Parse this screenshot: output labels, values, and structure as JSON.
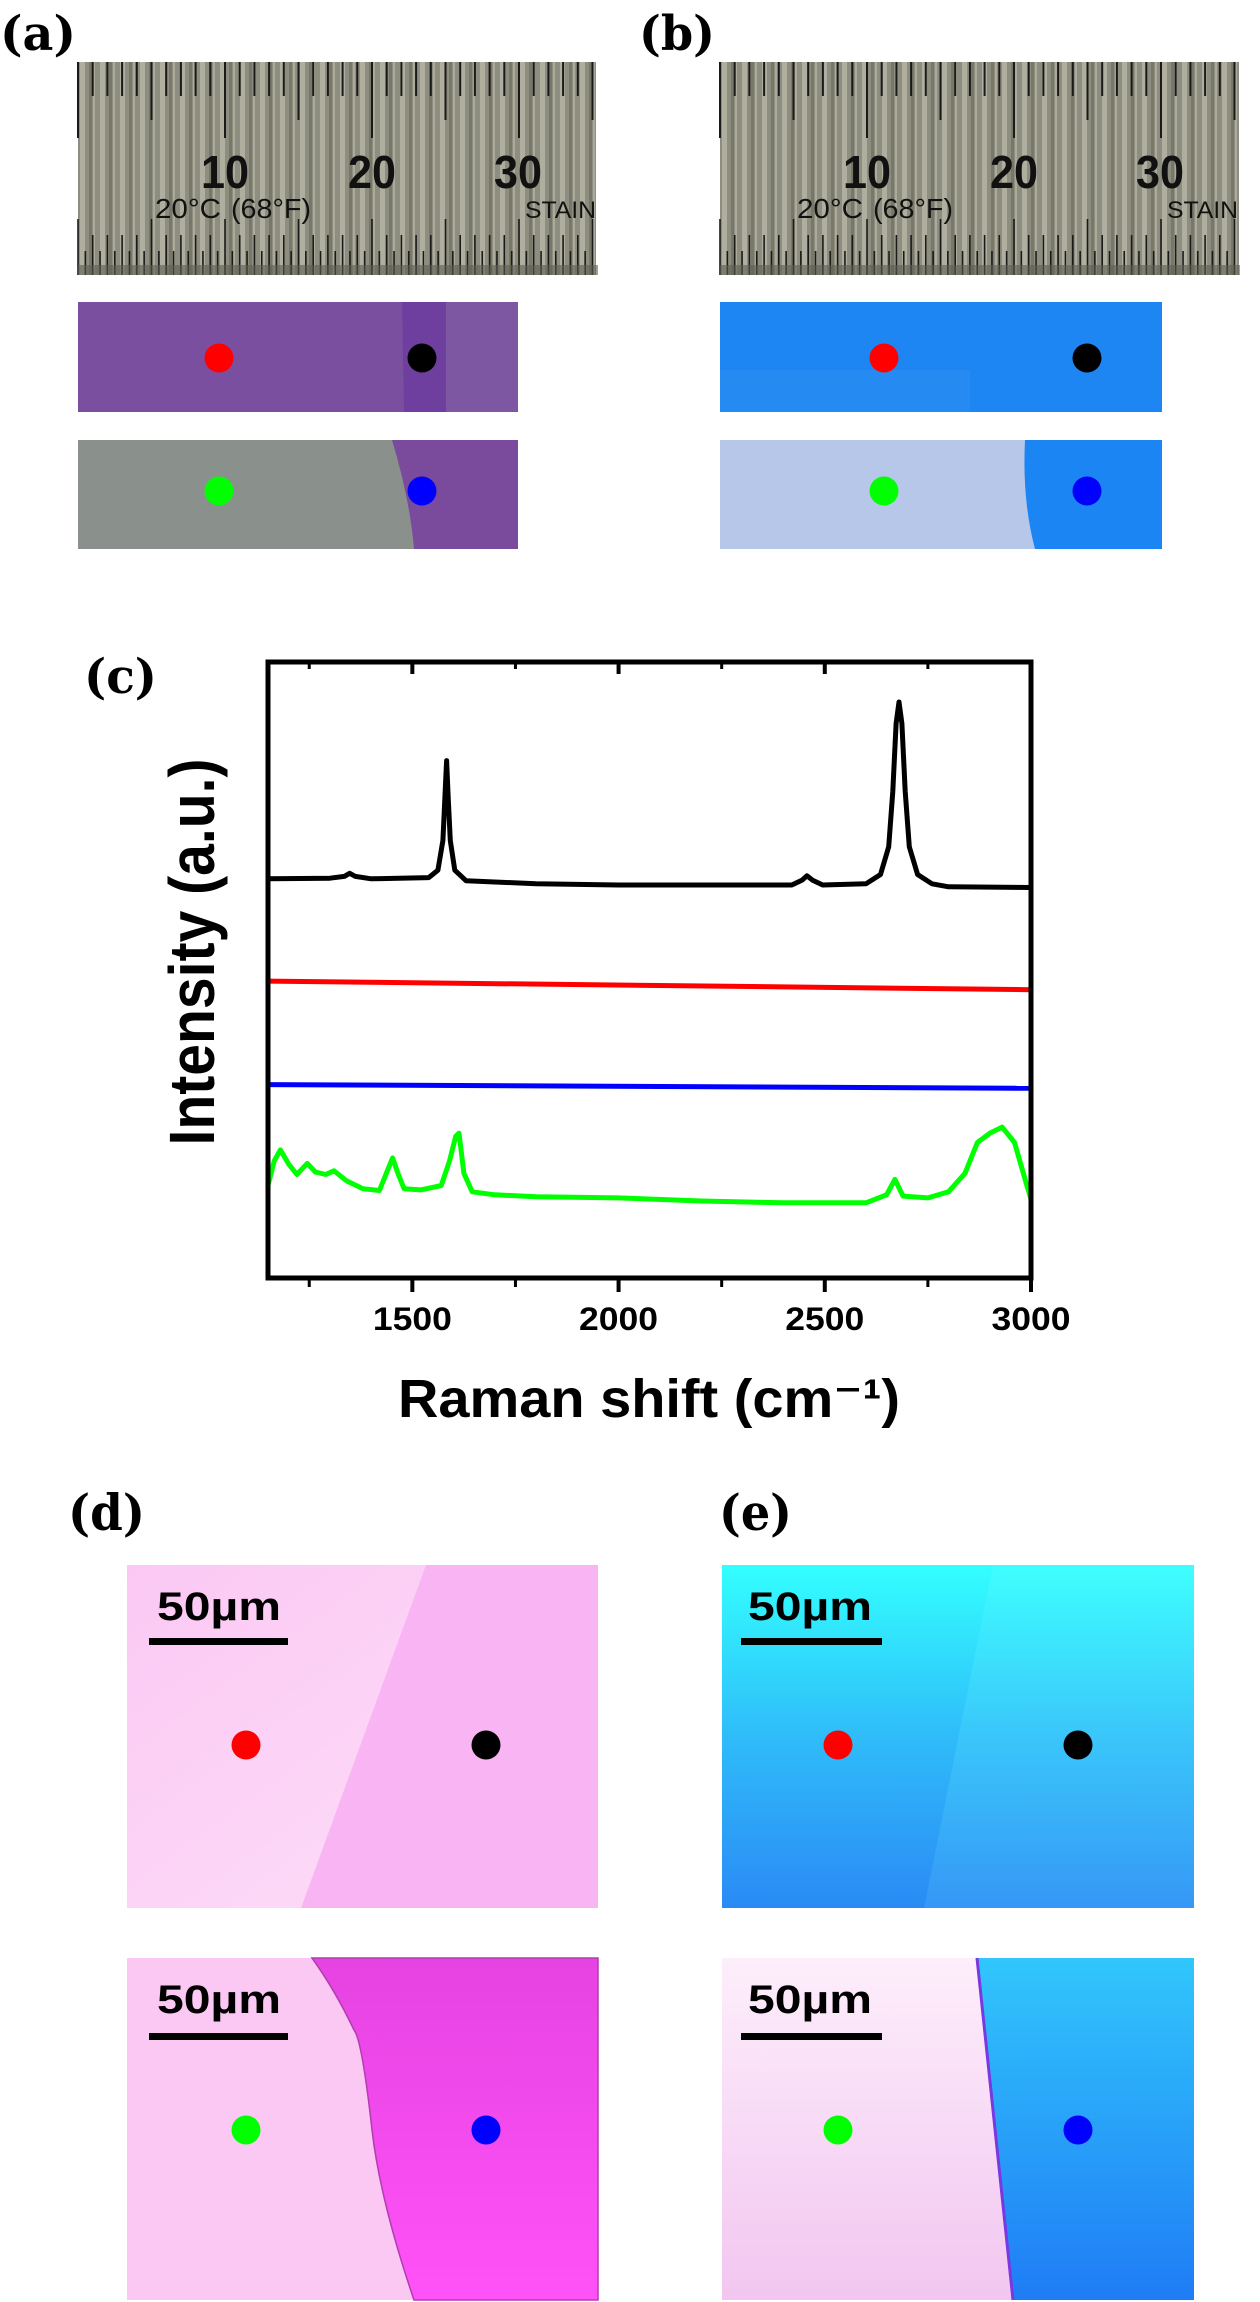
{
  "panels": {
    "a": "(a)",
    "b": "(b)",
    "c": "(c)",
    "d": "(d)",
    "e": "(e)"
  },
  "ruler": {
    "numbers": [
      "10",
      "20",
      "30"
    ],
    "temp_c": "20°C",
    "temp_f": "(68°F)",
    "brand": "STAIN"
  },
  "scale_bar_label": "50µm",
  "marker_colors": {
    "red": "#ff0000",
    "black": "#000000",
    "green": "#00ff00",
    "blue": "#0000ff"
  },
  "sample_colors": {
    "a_purple": "#7b4fa0",
    "a_gray": "#8a918c",
    "b_blue": "#1e86f3",
    "b_lightblue": "#b6c7ea",
    "d_lightpink": "#fcd2f5",
    "d_pink": "#f9b5f3",
    "d_magenta": "#f24cf0",
    "e_cyan": "#33ffff",
    "e_blue": "#2a8af5",
    "e_line": "#7a38e0"
  },
  "chart_data": {
    "type": "line",
    "xlabel": "Raman shift (cm⁻¹)",
    "ylabel": "Intensity (a.u.)",
    "xlim": [
      1150,
      3000
    ],
    "ylim": [
      0,
      100
    ],
    "xticks": [
      1500,
      2000,
      2500,
      3000
    ],
    "xticks_labels": [
      "1500",
      "2000",
      "2500",
      "3000"
    ],
    "xminor": [
      1250,
      1750,
      2250,
      2750
    ],
    "grid": false,
    "series": [
      {
        "color": "#000000",
        "points": [
          [
            1150,
            64.8
          ],
          [
            1300,
            64.9
          ],
          [
            1335,
            65.2
          ],
          [
            1348,
            65.7
          ],
          [
            1362,
            65.2
          ],
          [
            1400,
            64.8
          ],
          [
            1540,
            65
          ],
          [
            1562,
            66.2
          ],
          [
            1574,
            71
          ],
          [
            1579,
            78
          ],
          [
            1583,
            84
          ],
          [
            1587,
            78
          ],
          [
            1592,
            71
          ],
          [
            1603,
            66.2
          ],
          [
            1630,
            64.5
          ],
          [
            1800,
            64
          ],
          [
            2000,
            63.8
          ],
          [
            2420,
            63.8
          ],
          [
            2445,
            64.6
          ],
          [
            2457,
            65.3
          ],
          [
            2470,
            64.6
          ],
          [
            2495,
            63.8
          ],
          [
            2600,
            64
          ],
          [
            2635,
            65.5
          ],
          [
            2655,
            70
          ],
          [
            2665,
            79
          ],
          [
            2673,
            90
          ],
          [
            2680,
            93.5
          ],
          [
            2687,
            90
          ],
          [
            2695,
            79
          ],
          [
            2705,
            70
          ],
          [
            2725,
            65.5
          ],
          [
            2760,
            64
          ],
          [
            2800,
            63.5
          ],
          [
            3000,
            63.4
          ]
        ]
      },
      {
        "color": "#ff0000",
        "points": [
          [
            1150,
            48.2
          ],
          [
            3000,
            46.8
          ]
        ]
      },
      {
        "color": "#0000ff",
        "points": [
          [
            1150,
            31.4
          ],
          [
            3000,
            30.8
          ]
        ]
      },
      {
        "color": "#00ff00",
        "points": [
          [
            1150,
            15
          ],
          [
            1165,
            19
          ],
          [
            1180,
            20.8
          ],
          [
            1200,
            18.5
          ],
          [
            1220,
            16.8
          ],
          [
            1245,
            18.6
          ],
          [
            1265,
            17.2
          ],
          [
            1290,
            16.8
          ],
          [
            1310,
            17.4
          ],
          [
            1340,
            15.8
          ],
          [
            1380,
            14.5
          ],
          [
            1420,
            14.2
          ],
          [
            1440,
            17.5
          ],
          [
            1452,
            19.5
          ],
          [
            1465,
            17
          ],
          [
            1480,
            14.5
          ],
          [
            1520,
            14.3
          ],
          [
            1570,
            15
          ],
          [
            1590,
            19
          ],
          [
            1605,
            23
          ],
          [
            1613,
            23.5
          ],
          [
            1625,
            17
          ],
          [
            1645,
            14
          ],
          [
            1700,
            13.5
          ],
          [
            1800,
            13.2
          ],
          [
            2000,
            13
          ],
          [
            2200,
            12.5
          ],
          [
            2400,
            12.2
          ],
          [
            2600,
            12.2
          ],
          [
            2650,
            13.5
          ],
          [
            2670,
            16
          ],
          [
            2690,
            13.3
          ],
          [
            2750,
            13
          ],
          [
            2800,
            14
          ],
          [
            2840,
            17
          ],
          [
            2870,
            22
          ],
          [
            2900,
            23.5
          ],
          [
            2930,
            24.5
          ],
          [
            2960,
            22
          ],
          [
            2990,
            15
          ],
          [
            3000,
            12.8
          ]
        ]
      }
    ]
  }
}
